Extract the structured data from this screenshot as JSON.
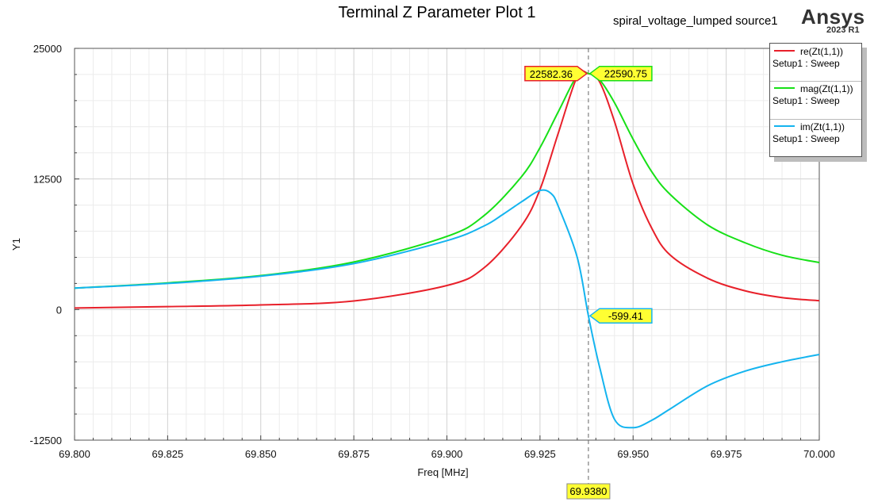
{
  "header": {
    "title": "Terminal Z Parameter Plot 1",
    "subtitle": "spiral_voltage_lumped source1",
    "brand": "Ansys",
    "version": "2023 R1"
  },
  "legend": {
    "items": [
      {
        "name": "re(Zt(1,1))",
        "sub": "Setup1 : Sweep",
        "color": "#e8202a"
      },
      {
        "name": "mag(Zt(1,1))",
        "sub": "Setup1 : Sweep",
        "color": "#17e017"
      },
      {
        "name": "im(Zt(1,1))",
        "sub": "Setup1 : Sweep",
        "color": "#14b4ef"
      }
    ]
  },
  "chart_data": {
    "type": "line",
    "xlabel": "Freq [MHz]",
    "ylabel": "Y1",
    "xlim": [
      69.8,
      70.0
    ],
    "ylim": [
      -12500,
      25000
    ],
    "xticks": [
      "69.800",
      "69.825",
      "69.850",
      "69.875",
      "69.900",
      "69.925",
      "69.950",
      "69.975",
      "70.000"
    ],
    "yticks": [
      "25000",
      "12500",
      "0",
      "-12500"
    ],
    "grid": true,
    "legend_position": "top-right",
    "series": [
      {
        "name": "re(Zt(1,1))",
        "color": "#e8202a",
        "x": [
          69.8,
          69.825,
          69.85,
          69.875,
          69.9,
          69.91,
          69.92,
          69.925,
          69.93,
          69.935,
          69.938,
          69.941,
          69.945,
          69.95,
          69.955,
          69.96,
          69.97,
          69.98,
          69.99,
          70.0
        ],
        "y": [
          150,
          280,
          440,
          820,
          2300,
          4000,
          8000,
          11500,
          17000,
          22300,
          22582,
          21800,
          18000,
          12000,
          7800,
          5200,
          3000,
          1800,
          1150,
          850
        ]
      },
      {
        "name": "mag(Zt(1,1))",
        "color": "#17e017",
        "x": [
          69.8,
          69.825,
          69.85,
          69.875,
          69.9,
          69.91,
          69.92,
          69.925,
          69.93,
          69.935,
          69.938,
          69.941,
          69.945,
          69.95,
          69.955,
          69.96,
          69.97,
          69.98,
          69.99,
          70.0
        ],
        "y": [
          2050,
          2550,
          3250,
          4550,
          7000,
          9000,
          12700,
          15500,
          19000,
          22400,
          22591,
          22000,
          19800,
          16300,
          13200,
          11000,
          8100,
          6400,
          5200,
          4500
        ]
      },
      {
        "name": "im(Zt(1,1))",
        "color": "#14b4ef",
        "x": [
          69.8,
          69.825,
          69.85,
          69.875,
          69.9,
          69.91,
          69.915,
          69.92,
          69.925,
          69.928,
          69.93,
          69.935,
          69.938,
          69.941,
          69.945,
          69.95,
          69.955,
          69.96,
          69.97,
          69.98,
          69.99,
          70.0
        ],
        "y": [
          2050,
          2500,
          3200,
          4400,
          6600,
          8000,
          9100,
          10300,
          11400,
          11100,
          9800,
          5000,
          -599,
          -5500,
          -10500,
          -11300,
          -10600,
          -9500,
          -7300,
          -5900,
          -5000,
          -4300
        ]
      }
    ],
    "markers": [
      {
        "label": "22582.36",
        "series": "re(Zt(1,1))",
        "x": 69.938,
        "y": 22582.36,
        "side": "left",
        "fill": "#ffff33",
        "border": "#e8202a"
      },
      {
        "label": "22590.75",
        "series": "mag(Zt(1,1))",
        "x": 69.938,
        "y": 22590.75,
        "side": "right",
        "fill": "#ffff33",
        "border": "#17e017"
      },
      {
        "label": "-599.41",
        "series": "im(Zt(1,1))",
        "x": 69.938,
        "y": -599.41,
        "side": "right",
        "fill": "#ffff33",
        "border": "#14b4ef"
      }
    ],
    "cursor": {
      "x": 69.938,
      "label": "69.9380"
    }
  }
}
